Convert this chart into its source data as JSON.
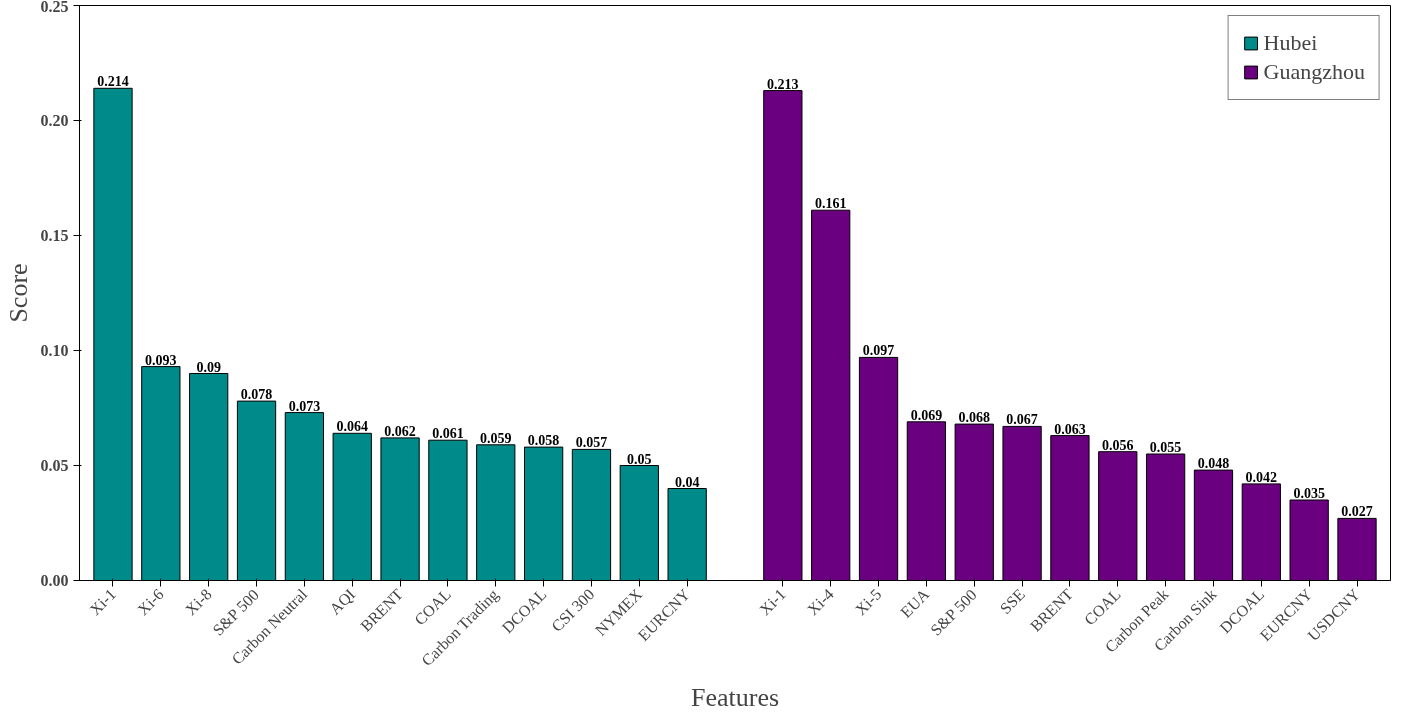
{
  "chart_data": {
    "type": "bar",
    "xlabel": "Features",
    "ylabel": "Score",
    "categories": [
      "Xi-1",
      "Xi-6",
      "Xi-8",
      "S&P 500",
      "Carbon Neutral",
      "AQI",
      "BRENT",
      "COAL",
      "Carbon Trading",
      "DCOAL",
      "CSI 300",
      "NYMEX",
      "EURCNY",
      null,
      "Xi-1",
      "Xi-4",
      "Xi-5",
      "EUA",
      "S&P 500",
      "SSE",
      "BRENT",
      "COAL",
      "Carbon Peak",
      "Carbon Sink",
      "DCOAL",
      "EURCNY",
      "USDCNY"
    ],
    "series": [
      {
        "name": "Hubei",
        "color": "#008b8b",
        "values": [
          0.214,
          0.093,
          0.09,
          0.078,
          0.073,
          0.064,
          0.062,
          0.061,
          0.059,
          0.058,
          0.057,
          0.05,
          0.04,
          null,
          null,
          null,
          null,
          null,
          null,
          null,
          null,
          null,
          null,
          null,
          null,
          null,
          null
        ]
      },
      {
        "name": "Guangzhou",
        "color": "#6a0080",
        "values": [
          null,
          null,
          null,
          null,
          null,
          null,
          null,
          null,
          null,
          null,
          null,
          null,
          null,
          null,
          0.213,
          0.161,
          0.097,
          0.069,
          0.068,
          0.067,
          0.063,
          0.056,
          0.055,
          0.048,
          0.042,
          0.035,
          0.027
        ]
      }
    ],
    "ylim": [
      0,
      0.25
    ],
    "yticks": [
      {
        "value": 0,
        "label": "0.00"
      },
      0.05,
      {
        "value": 0.1,
        "label": "0.10"
      },
      0.15,
      {
        "value": 0.2,
        "label": "0.20"
      },
      0.25
    ],
    "data_labels": true,
    "legend": "top right"
  }
}
